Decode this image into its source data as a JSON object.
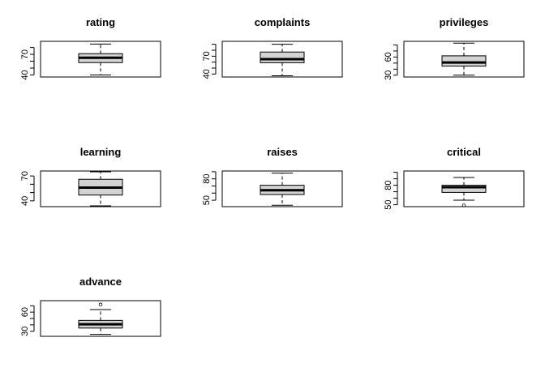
{
  "chart_data": [
    {
      "type": "box",
      "title": "rating",
      "ylim": [
        37,
        89
      ],
      "ticks": [
        40,
        70
      ],
      "stats": {
        "whisker_low": 40,
        "q1": 58,
        "median": 65,
        "q3": 71,
        "whisker_high": 85
      },
      "outliers": []
    },
    {
      "type": "box",
      "title": "complaints",
      "ylim": [
        35,
        95
      ],
      "ticks": [
        40,
        70
      ],
      "stats": {
        "whisker_low": 37,
        "q1": 59,
        "median": 65,
        "q3": 77,
        "whisker_high": 90
      },
      "outliers": []
    },
    {
      "type": "box",
      "title": "privileges",
      "ylim": [
        27,
        86
      ],
      "ticks": [
        30,
        60
      ],
      "stats": {
        "whisker_low": 30,
        "q1": 45,
        "median": 51,
        "q3": 62,
        "whisker_high": 83
      },
      "outliers": []
    },
    {
      "type": "box",
      "title": "learning",
      "ylim": [
        33,
        76
      ],
      "ticks": [
        40,
        70
      ],
      "stats": {
        "whisker_low": 34,
        "q1": 47,
        "median": 56,
        "q3": 66,
        "whisker_high": 75
      },
      "outliers": []
    },
    {
      "type": "box",
      "title": "raises",
      "ylim": [
        41,
        91
      ],
      "ticks": [
        50,
        80
      ],
      "stats": {
        "whisker_low": 43,
        "q1": 58,
        "median": 64,
        "q3": 71,
        "whisker_high": 88
      },
      "outliers": []
    },
    {
      "type": "box",
      "title": "critical",
      "ylim": [
        47,
        102
      ],
      "ticks": [
        50,
        80
      ],
      "stats": {
        "whisker_low": 57,
        "q1": 69,
        "median": 77,
        "q3": 80,
        "whisker_high": 92
      },
      "outliers": [
        49
      ]
    },
    {
      "type": "box",
      "title": "advance",
      "ylim": [
        22,
        78
      ],
      "ticks": [
        30,
        60
      ],
      "stats": {
        "whisker_low": 25,
        "q1": 35,
        "median": 41,
        "q3": 47,
        "whisker_high": 64
      },
      "outliers": [
        72
      ]
    }
  ]
}
